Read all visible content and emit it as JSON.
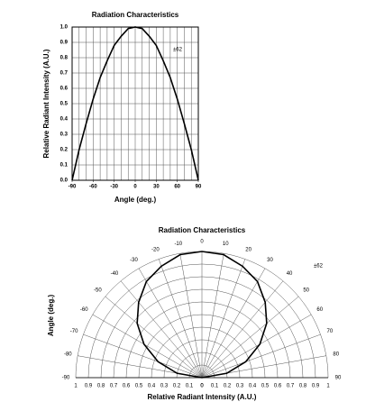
{
  "chart_data": [
    {
      "type": "line",
      "title": "Radiation Characteristics",
      "xlabel": "Angle (deg.)",
      "ylabel": "Relative Radiant Intensity (A.U.)",
      "annotation": "±62",
      "x": [
        -90,
        -80,
        -70,
        -60,
        -50,
        -40,
        -30,
        -20,
        -10,
        0,
        10,
        20,
        30,
        40,
        50,
        60,
        70,
        80,
        90
      ],
      "values": [
        0,
        0.2,
        0.37,
        0.53,
        0.67,
        0.78,
        0.88,
        0.94,
        0.99,
        1,
        0.99,
        0.94,
        0.88,
        0.78,
        0.67,
        0.53,
        0.37,
        0.2,
        0
      ],
      "xlim": [
        -90,
        90
      ],
      "ylim": [
        0,
        1
      ],
      "xticks": [
        -90,
        -60,
        -30,
        0,
        30,
        60,
        90
      ],
      "xgrid": [
        -90,
        -80,
        -70,
        -60,
        -50,
        -40,
        -30,
        -20,
        -10,
        0,
        10,
        20,
        30,
        40,
        50,
        60,
        70,
        80,
        90
      ],
      "yticks": [
        {
          "value": 0,
          "label": "0.0"
        },
        0.1,
        0.2,
        0.3,
        0.4,
        0.5,
        0.6,
        0.7,
        0.8,
        0.9,
        {
          "value": 1,
          "label": "1.0"
        }
      ],
      "grid": true,
      "color": "#000000"
    },
    {
      "type": "polar",
      "title": "Radiation Characteristics",
      "xlabel": "Relative Radiant Intensity (A.U.)",
      "ylabel": "Angle (deg.)",
      "annotation": "±62",
      "x": [
        -90,
        -80,
        -70,
        -60,
        -50,
        -40,
        -30,
        -20,
        -10,
        0,
        10,
        20,
        30,
        40,
        50,
        60,
        70,
        80,
        90
      ],
      "values": [
        0,
        0.2,
        0.37,
        0.53,
        0.67,
        0.78,
        0.88,
        0.94,
        0.99,
        1,
        0.99,
        0.94,
        0.88,
        0.78,
        0.67,
        0.53,
        0.37,
        0.2,
        0
      ],
      "xlim": [
        -90,
        90
      ],
      "rlim": [
        0,
        1
      ],
      "xticks": [
        -90,
        -80,
        -70,
        -60,
        -50,
        -40,
        -30,
        -20,
        -10,
        0,
        10,
        20,
        30,
        40,
        50,
        60,
        70,
        80,
        90
      ],
      "rticks": [
        0,
        0.1,
        0.2,
        0.3,
        0.4,
        0.5,
        0.6,
        0.7,
        0.8,
        0.9,
        1
      ],
      "grid": true,
      "color": "#000000"
    }
  ]
}
